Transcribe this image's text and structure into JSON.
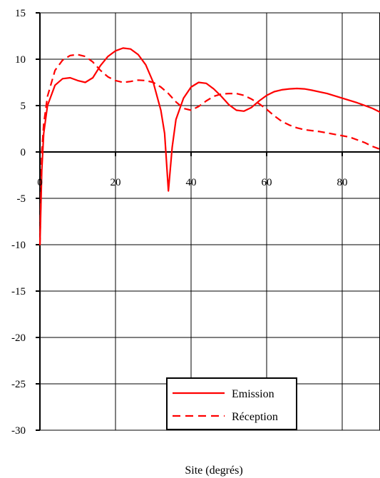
{
  "chart_data": {
    "type": "line",
    "title": "",
    "xlabel": "Site (degrés)",
    "ylabel": "",
    "xlim": [
      0,
      90
    ],
    "ylim": [
      -30,
      15
    ],
    "x_ticks": [
      0,
      20,
      40,
      60,
      80
    ],
    "y_ticks": [
      15,
      10,
      5,
      0,
      -5,
      -10,
      -15,
      -20,
      -25,
      -30
    ],
    "grid": true,
    "legend_position": "bottom-right",
    "series": [
      {
        "name": "Emission",
        "color": "#ff0000",
        "dash": "solid",
        "points": [
          [
            0,
            -10
          ],
          [
            0.5,
            -2
          ],
          [
            1,
            2
          ],
          [
            2,
            5
          ],
          [
            4,
            7.2
          ],
          [
            6,
            7.9
          ],
          [
            8,
            8.0
          ],
          [
            10,
            7.7
          ],
          [
            12,
            7.5
          ],
          [
            14,
            8.0
          ],
          [
            16,
            9.3
          ],
          [
            18,
            10.3
          ],
          [
            20,
            10.9
          ],
          [
            22,
            11.2
          ],
          [
            24,
            11.1
          ],
          [
            26,
            10.5
          ],
          [
            28,
            9.4
          ],
          [
            30,
            7.5
          ],
          [
            32,
            4.5
          ],
          [
            33,
            2.0
          ],
          [
            34,
            -4.2
          ],
          [
            35,
            0.5
          ],
          [
            36,
            3.5
          ],
          [
            38,
            5.8
          ],
          [
            40,
            7.0
          ],
          [
            42,
            7.5
          ],
          [
            44,
            7.4
          ],
          [
            46,
            6.8
          ],
          [
            48,
            6.0
          ],
          [
            50,
            5.1
          ],
          [
            52,
            4.5
          ],
          [
            54,
            4.4
          ],
          [
            56,
            4.8
          ],
          [
            58,
            5.5
          ],
          [
            60,
            6.1
          ],
          [
            62,
            6.5
          ],
          [
            64,
            6.7
          ],
          [
            66,
            6.8
          ],
          [
            68,
            6.85
          ],
          [
            70,
            6.8
          ],
          [
            72,
            6.65
          ],
          [
            76,
            6.3
          ],
          [
            80,
            5.8
          ],
          [
            84,
            5.3
          ],
          [
            88,
            4.7
          ],
          [
            90,
            4.3
          ]
        ]
      },
      {
        "name": "Réception",
        "color": "#ff0000",
        "dash": "dashed",
        "points": [
          [
            0,
            -10
          ],
          [
            0.5,
            0
          ],
          [
            1,
            3
          ],
          [
            2,
            6
          ],
          [
            4,
            8.8
          ],
          [
            6,
            9.9
          ],
          [
            8,
            10.4
          ],
          [
            10,
            10.5
          ],
          [
            12,
            10.3
          ],
          [
            14,
            9.7
          ],
          [
            16,
            8.8
          ],
          [
            18,
            8.1
          ],
          [
            20,
            7.7
          ],
          [
            22,
            7.5
          ],
          [
            24,
            7.6
          ],
          [
            26,
            7.75
          ],
          [
            28,
            7.7
          ],
          [
            30,
            7.5
          ],
          [
            32,
            7.0
          ],
          [
            34,
            6.3
          ],
          [
            36,
            5.4
          ],
          [
            38,
            4.7
          ],
          [
            40,
            4.5
          ],
          [
            42,
            4.9
          ],
          [
            44,
            5.5
          ],
          [
            46,
            6.0
          ],
          [
            48,
            6.25
          ],
          [
            50,
            6.3
          ],
          [
            52,
            6.3
          ],
          [
            54,
            6.1
          ],
          [
            56,
            5.7
          ],
          [
            58,
            5.2
          ],
          [
            60,
            4.6
          ],
          [
            62,
            3.9
          ],
          [
            64,
            3.3
          ],
          [
            66,
            2.9
          ],
          [
            68,
            2.6
          ],
          [
            70,
            2.4
          ],
          [
            74,
            2.2
          ],
          [
            78,
            1.9
          ],
          [
            82,
            1.6
          ],
          [
            86,
            1.0
          ],
          [
            88,
            0.6
          ],
          [
            90,
            0.3
          ]
        ]
      }
    ]
  }
}
